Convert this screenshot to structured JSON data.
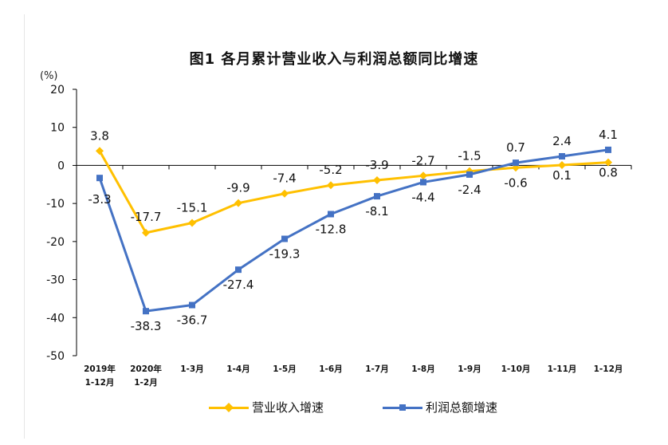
{
  "chart_data": {
    "type": "line",
    "title": "图1  各月累计营业收入与利润总额同比增速",
    "ylabel": "(%)",
    "ylim": [
      -50,
      20
    ],
    "yticks": [
      20,
      10,
      0,
      -10,
      -20,
      -30,
      -40,
      -50
    ],
    "grid": false,
    "legend_position": "bottom",
    "categories": [
      [
        "2019年",
        "1-12月"
      ],
      [
        "2020年",
        "1-2月"
      ],
      [
        "1-3月"
      ],
      [
        "1-4月"
      ],
      [
        "1-5月"
      ],
      [
        "1-6月"
      ],
      [
        "1-7月"
      ],
      [
        "1-8月"
      ],
      [
        "1-9月"
      ],
      [
        "1-10月"
      ],
      [
        "1-11月"
      ],
      [
        "1-12月"
      ]
    ],
    "series": [
      {
        "name": "营业收入增速",
        "color": "#FFC000",
        "marker": "diamond",
        "values": [
          3.8,
          -17.7,
          -15.1,
          -9.9,
          -7.4,
          -5.2,
          -3.9,
          -2.7,
          -1.5,
          -0.6,
          0.1,
          0.8
        ],
        "labels": [
          "3.8",
          "-17.7",
          "-15.1",
          "-9.9",
          "-7.4",
          "-5.2",
          "-3.9",
          "-2.7",
          "-1.5",
          "-0.6",
          "0.1",
          "0.8"
        ]
      },
      {
        "name": "利润总额增速",
        "color": "#4472C4",
        "marker": "square",
        "values": [
          -3.3,
          -38.3,
          -36.7,
          -27.4,
          -19.3,
          -12.8,
          -8.1,
          -4.4,
          -2.4,
          0.7,
          2.4,
          4.1
        ],
        "labels": [
          "-3.3",
          "-38.3",
          "-36.7",
          "-27.4",
          "-19.3",
          "-12.8",
          "-8.1",
          "-4.4",
          "-2.4",
          "0.7",
          "2.4",
          "4.1"
        ]
      }
    ]
  }
}
